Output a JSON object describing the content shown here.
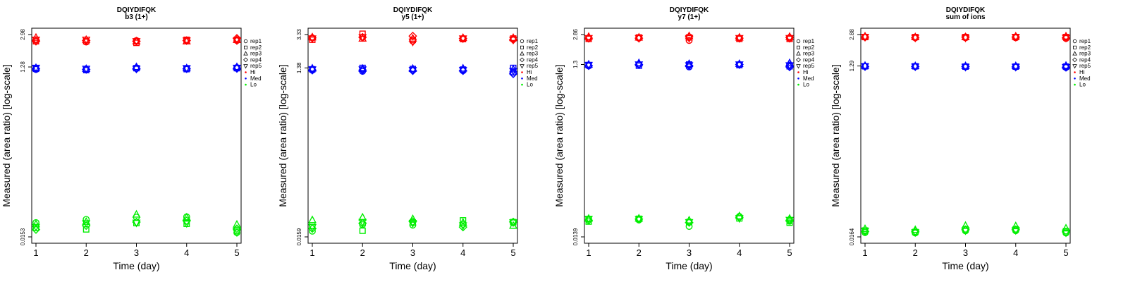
{
  "chart_data": [
    {
      "type": "scatter",
      "title": "DQIYDIFQK",
      "subtitle": "b3 (1+)",
      "xlabel": "Time (day)",
      "ylabel": "Measured (area ratio) [log-scale]",
      "x_ticks": [
        "1",
        "2",
        "3",
        "4",
        "5"
      ],
      "y_ticks": [
        "0.0153",
        "1.28",
        "2.98"
      ],
      "log_scale": true,
      "ylim": [
        0.0153,
        2.98
      ],
      "legend": {
        "position": "right",
        "replicates": [
          "rep1",
          "rep2",
          "rep3",
          "rep4",
          "rep5"
        ],
        "levels": [
          "Hi",
          "Med",
          "Lo"
        ]
      },
      "series": [
        {
          "name": "Hi",
          "color": "#ff0000",
          "reps": [
            [
              2.6,
              2.5,
              2.75,
              2.5,
              2.6
            ],
            [
              2.45,
              2.5,
              2.6,
              2.55,
              2.6
            ],
            [
              2.55,
              2.4,
              2.5,
              2.5,
              2.5
            ],
            [
              2.55,
              2.6,
              2.5,
              2.55,
              2.55
            ],
            [
              2.55,
              2.6,
              2.6,
              2.7,
              2.55
            ]
          ]
        },
        {
          "name": "Med",
          "color": "#0000ff",
          "reps": [
            [
              1.2,
              1.22,
              1.25,
              1.22,
              1.25
            ],
            [
              1.2,
              1.18,
              1.22,
              1.2,
              1.22
            ],
            [
              1.25,
              1.24,
              1.28,
              1.22,
              1.22
            ],
            [
              1.23,
              1.21,
              1.24,
              1.22,
              1.24
            ],
            [
              1.26,
              1.24,
              1.28,
              1.23,
              1.25
            ]
          ]
        },
        {
          "name": "Lo",
          "color": "#00ee00",
          "reps": [
            [
              0.0222,
              0.0194,
              0.0213,
              0.0185,
              0.0198
            ],
            [
              0.0241,
              0.0186,
              0.0227,
              0.0205,
              0.0218
            ],
            [
              0.0256,
              0.0219,
              0.0274,
              0.0225,
              0.0221
            ],
            [
              0.0258,
              0.0215,
              0.0254,
              0.0233,
              0.0218
            ],
            [
              0.0171,
              0.0178,
              0.0211,
              0.0189,
              0.0172
            ]
          ]
        }
      ]
    },
    {
      "type": "scatter",
      "title": "DQIYDIFQK",
      "subtitle": "y5 (1+)",
      "xlabel": "Time (day)",
      "ylabel": "Measured (area ratio) [log-scale]",
      "x_ticks": [
        "1",
        "2",
        "3",
        "4",
        "5"
      ],
      "y_ticks": [
        "0.0159",
        "1.38",
        "3.33"
      ],
      "log_scale": true,
      "ylim": [
        0.0159,
        3.33
      ],
      "legend": {
        "position": "right",
        "replicates": [
          "rep1",
          "rep2",
          "rep3",
          "rep4",
          "rep5"
        ],
        "levels": [
          "Hi",
          "Med",
          "Lo"
        ]
      },
      "series": [
        {
          "name": "Hi",
          "color": "#ff0000",
          "reps": [
            [
              3.05,
              2.9,
              3.1,
              3.05,
              3.0
            ],
            [
              3.1,
              3.4,
              3.0,
              3.1,
              3.1
            ],
            [
              2.8,
              2.9,
              3.0,
              3.2,
              2.75
            ],
            [
              3.0,
              2.95,
              3.05,
              3.0,
              3.0
            ],
            [
              2.95,
              3.0,
              3.05,
              2.9,
              2.9
            ]
          ]
        },
        {
          "name": "Med",
          "color": "#0000ff",
          "reps": [
            [
              1.3,
              1.33,
              1.36,
              1.3,
              1.32
            ],
            [
              1.26,
              1.38,
              1.35,
              1.3,
              1.32
            ],
            [
              1.3,
              1.34,
              1.35,
              1.28,
              1.3
            ],
            [
              1.28,
              1.32,
              1.36,
              1.28,
              1.3
            ],
            [
              1.23,
              1.38,
              1.33,
              1.18,
              1.27
            ]
          ]
        },
        {
          "name": "Lo",
          "color": "#00ee00",
          "reps": [
            [
              0.0185,
              0.0214,
              0.0248,
              0.0198,
              0.0205
            ],
            [
              0.0219,
              0.0187,
              0.0266,
              0.0228,
              0.0235
            ],
            [
              0.0217,
              0.0233,
              0.0255,
              0.0238,
              0.0229
            ],
            [
              0.0222,
              0.0246,
              0.0232,
              0.0206,
              0.0215
            ],
            [
              0.0231,
              0.0235,
              0.0214,
              0.0236,
              0.0233
            ]
          ]
        }
      ]
    },
    {
      "type": "scatter",
      "title": "DQIYDIFQK",
      "subtitle": "y7 (1+)",
      "xlabel": "Time (day)",
      "ylabel": "Measured (area ratio) [log-scale]",
      "x_ticks": [
        "1",
        "2",
        "3",
        "4",
        "5"
      ],
      "y_ticks": [
        "0.0139",
        "1.3",
        "2.86"
      ],
      "log_scale": true,
      "ylim": [
        0.0139,
        2.86
      ],
      "legend": {
        "position": "right",
        "replicates": [
          "rep1",
          "rep2",
          "rep3",
          "rep4",
          "rep5"
        ],
        "levels": [
          "Hi",
          "Med",
          "Lo"
        ]
      },
      "series": [
        {
          "name": "Hi",
          "color": "#ff0000",
          "reps": [
            [
              2.6,
              2.55,
              2.7,
              2.6,
              2.6
            ],
            [
              2.6,
              2.65,
              2.65,
              2.6,
              2.6
            ],
            [
              2.45,
              2.65,
              2.75,
              2.7,
              2.6
            ],
            [
              2.6,
              2.55,
              2.65,
              2.6,
              2.6
            ],
            [
              2.6,
              2.55,
              2.7,
              2.65,
              2.6
            ]
          ]
        },
        {
          "name": "Med",
          "color": "#0000ff",
          "reps": [
            [
              1.25,
              1.28,
              1.3,
              1.26,
              1.28
            ],
            [
              1.3,
              1.26,
              1.35,
              1.3,
              1.3
            ],
            [
              1.22,
              1.3,
              1.32,
              1.26,
              1.27
            ],
            [
              1.3,
              1.28,
              1.32,
              1.3,
              1.3
            ],
            [
              1.28,
              1.24,
              1.35,
              1.22,
              1.27
            ]
          ]
        },
        {
          "name": "Lo",
          "color": "#00ee00",
          "reps": [
            [
              0.0223,
              0.0208,
              0.0225,
              0.0215,
              0.0223
            ],
            [
              0.0217,
              0.0224,
              0.0226,
              0.0222,
              0.0221
            ],
            [
              0.0183,
              0.0205,
              0.0215,
              0.0203,
              0.0204
            ],
            [
              0.0238,
              0.0226,
              0.024,
              0.0233,
              0.0227
            ],
            [
              0.021,
              0.0202,
              0.0225,
              0.0215,
              0.0217
            ]
          ]
        }
      ]
    },
    {
      "type": "scatter",
      "title": "DQIYDIFQK",
      "subtitle": "sum of ions",
      "xlabel": "Time (day)",
      "ylabel": "Measured (area ratio) [log-scale]",
      "x_ticks": [
        "1",
        "2",
        "3",
        "4",
        "5"
      ],
      "y_ticks": [
        "0.0164",
        "1.29",
        "2.88"
      ],
      "log_scale": true,
      "ylim": [
        0.0164,
        2.88
      ],
      "legend": {
        "position": "right",
        "replicates": [
          "rep1",
          "rep2",
          "rep3",
          "rep4",
          "rep5"
        ],
        "levels": [
          "Hi",
          "Med",
          "Lo"
        ]
      },
      "series": [
        {
          "name": "Hi",
          "color": "#ff0000",
          "reps": [
            [
              2.7,
              2.7,
              2.75,
              2.7,
              2.7
            ],
            [
              2.65,
              2.7,
              2.7,
              2.65,
              2.65
            ],
            [
              2.65,
              2.7,
              2.7,
              2.7,
              2.65
            ],
            [
              2.65,
              2.7,
              2.75,
              2.7,
              2.7
            ],
            [
              2.6,
              2.7,
              2.75,
              2.65,
              2.65
            ]
          ]
        },
        {
          "name": "Med",
          "color": "#0000ff",
          "reps": [
            [
              1.28,
              1.28,
              1.3,
              1.27,
              1.28
            ],
            [
              1.27,
              1.28,
              1.29,
              1.27,
              1.27
            ],
            [
              1.26,
              1.27,
              1.29,
              1.27,
              1.26
            ],
            [
              1.26,
              1.27,
              1.29,
              1.26,
              1.26
            ],
            [
              1.24,
              1.27,
              1.3,
              1.25,
              1.25
            ]
          ]
        },
        {
          "name": "Lo",
          "color": "#00ee00",
          "reps": [
            [
              0.0183,
              0.0193,
              0.0201,
              0.0188,
              0.0191
            ],
            [
              0.0181,
              0.0186,
              0.0196,
              0.0189,
              0.0184
            ],
            [
              0.0191,
              0.0199,
              0.0218,
              0.0197,
              0.0193
            ],
            [
              0.0192,
              0.0199,
              0.0216,
              0.0197,
              0.0194
            ],
            [
              0.0181,
              0.019,
              0.0204,
              0.0186,
              0.0183
            ]
          ]
        }
      ]
    }
  ]
}
